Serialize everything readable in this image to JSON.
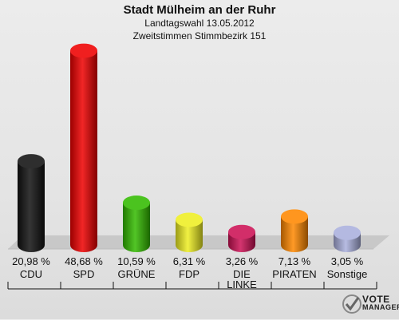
{
  "header": {
    "title": "Stadt Mülheim an der Ruhr",
    "subtitle1": "Landtagswahl 13.05.2012",
    "subtitle2": "Zweitstimmen Stimmbezirk 151"
  },
  "logo": {
    "line1": "VOTE",
    "line2": "MANAGER"
  },
  "chart_data": {
    "type": "bar",
    "title": "Stadt Mülheim an der Ruhr",
    "subtitle": "Landtagswahl 13.05.2012 / Zweitstimmen Stimmbezirk 151",
    "categories": [
      "CDU",
      "SPD",
      "GRÜNE",
      "FDP",
      "DIE LINKE",
      "PIRATEN",
      "Sonstige"
    ],
    "values": [
      20.98,
      48.68,
      10.59,
      6.31,
      3.26,
      7.13,
      3.05
    ],
    "value_labels": [
      "20,98 %",
      "48,68 %",
      "10,59 %",
      "6,31 %",
      "3,26 %",
      "7,13 %",
      "3,05 %"
    ],
    "colors": [
      "#111111",
      "#ee0000",
      "#33bb00",
      "#eeee22",
      "#cc1155",
      "#ff8800",
      "#aab0dd"
    ],
    "ylim": [
      0,
      50
    ],
    "grid": false,
    "legend": "none"
  }
}
